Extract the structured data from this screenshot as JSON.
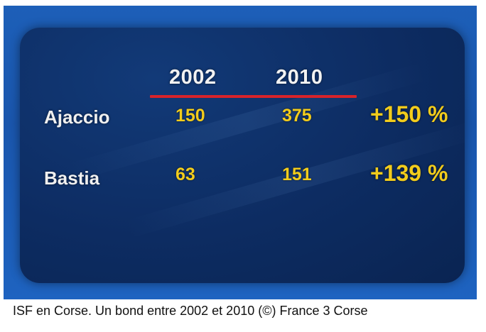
{
  "table": {
    "years": [
      "2002",
      "2010"
    ],
    "rows": [
      {
        "city": "Ajaccio",
        "v2002": "150",
        "v2010": "375",
        "change": "+150 %"
      },
      {
        "city": "Bastia",
        "v2002": "63",
        "v2010": "151",
        "change": "+139 %"
      }
    ]
  },
  "caption": "ISF en Corse. Un bond entre 2002 et 2010 (©) France 3 Corse",
  "colors": {
    "background_blue": "#1d5fb8",
    "panel_navy": "#0d2c62",
    "header_text": "#f2f2f2",
    "value_yellow": "#f2cc1c",
    "rule_red": "#d8232a"
  }
}
